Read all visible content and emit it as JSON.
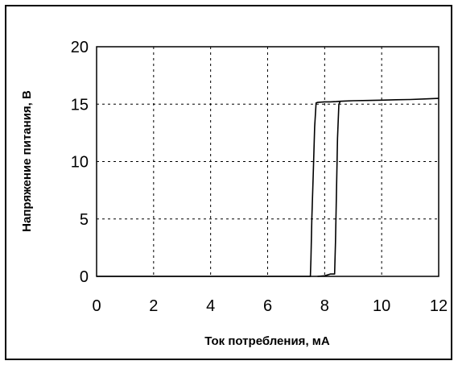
{
  "chart_data": {
    "type": "line",
    "xlabel": "Ток потребления, мА",
    "ylabel": "Напряжение питания, В",
    "xlim": [
      0,
      12
    ],
    "ylim": [
      0,
      20
    ],
    "x_ticks": [
      "0",
      "2",
      "4",
      "6",
      "8",
      "10",
      "12"
    ],
    "y_ticks": [
      "0",
      "5",
      "10",
      "15",
      "20"
    ],
    "grid": "dashed",
    "legend": "none",
    "line_color": "#000000",
    "series": [
      {
        "x": [
          0,
          7.5,
          7.52,
          7.55,
          7.6,
          7.65,
          7.7,
          7.75,
          8.0,
          8.2,
          8.4,
          8.55,
          8.7,
          9.0,
          9.5,
          10.0,
          10.5,
          11.0,
          11.5,
          12.0
        ],
        "y": [
          0,
          0,
          1.5,
          5,
          9,
          13,
          15.1,
          15.15,
          15.2,
          15.2,
          15.22,
          15.25,
          15.27,
          15.3,
          15.32,
          15.35,
          15.38,
          15.4,
          15.45,
          15.5
        ]
      },
      {
        "x": [
          7.75,
          8.0,
          8.2,
          8.35,
          8.38,
          8.42,
          8.45,
          8.5,
          8.55
        ],
        "y": [
          0,
          0.05,
          0.2,
          0.2,
          3,
          8,
          12,
          15.0,
          15.25
        ]
      }
    ]
  }
}
